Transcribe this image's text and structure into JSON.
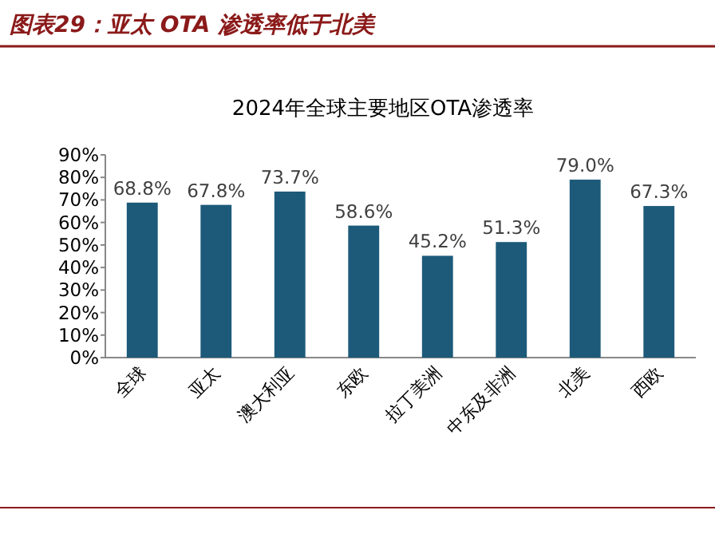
{
  "chart_data": {
    "type": "bar",
    "title": "图表29：亚太 OTA 渗透率低于北美",
    "subtitle": "2024年全球主要地区OTA渗透率",
    "categories": [
      "全球",
      "亚太",
      "澳大利亚",
      "东欧",
      "拉丁美洲",
      "中东及非洲",
      "北美",
      "西欧"
    ],
    "values": [
      68.8,
      67.8,
      73.7,
      58.6,
      45.2,
      51.3,
      79.0,
      67.3
    ],
    "value_labels": [
      "68.8%",
      "67.8%",
      "73.7%",
      "58.6%",
      "45.2%",
      "51.3%",
      "79.0%",
      "67.3%"
    ],
    "color": "#1d5a7a",
    "ylim": [
      0,
      90
    ],
    "yticks": [
      {
        "value": 0,
        "label": "0%"
      },
      {
        "value": 10,
        "label": "10%"
      },
      {
        "value": 20,
        "label": "20%"
      },
      {
        "value": 30,
        "label": "30%"
      },
      {
        "value": 40,
        "label": "40%"
      },
      {
        "value": 50,
        "label": "50%"
      },
      {
        "value": 60,
        "label": "60%"
      },
      {
        "value": 70,
        "label": "70%"
      },
      {
        "value": 80,
        "label": "80%"
      },
      {
        "value": 90,
        "label": "90%"
      }
    ]
  }
}
